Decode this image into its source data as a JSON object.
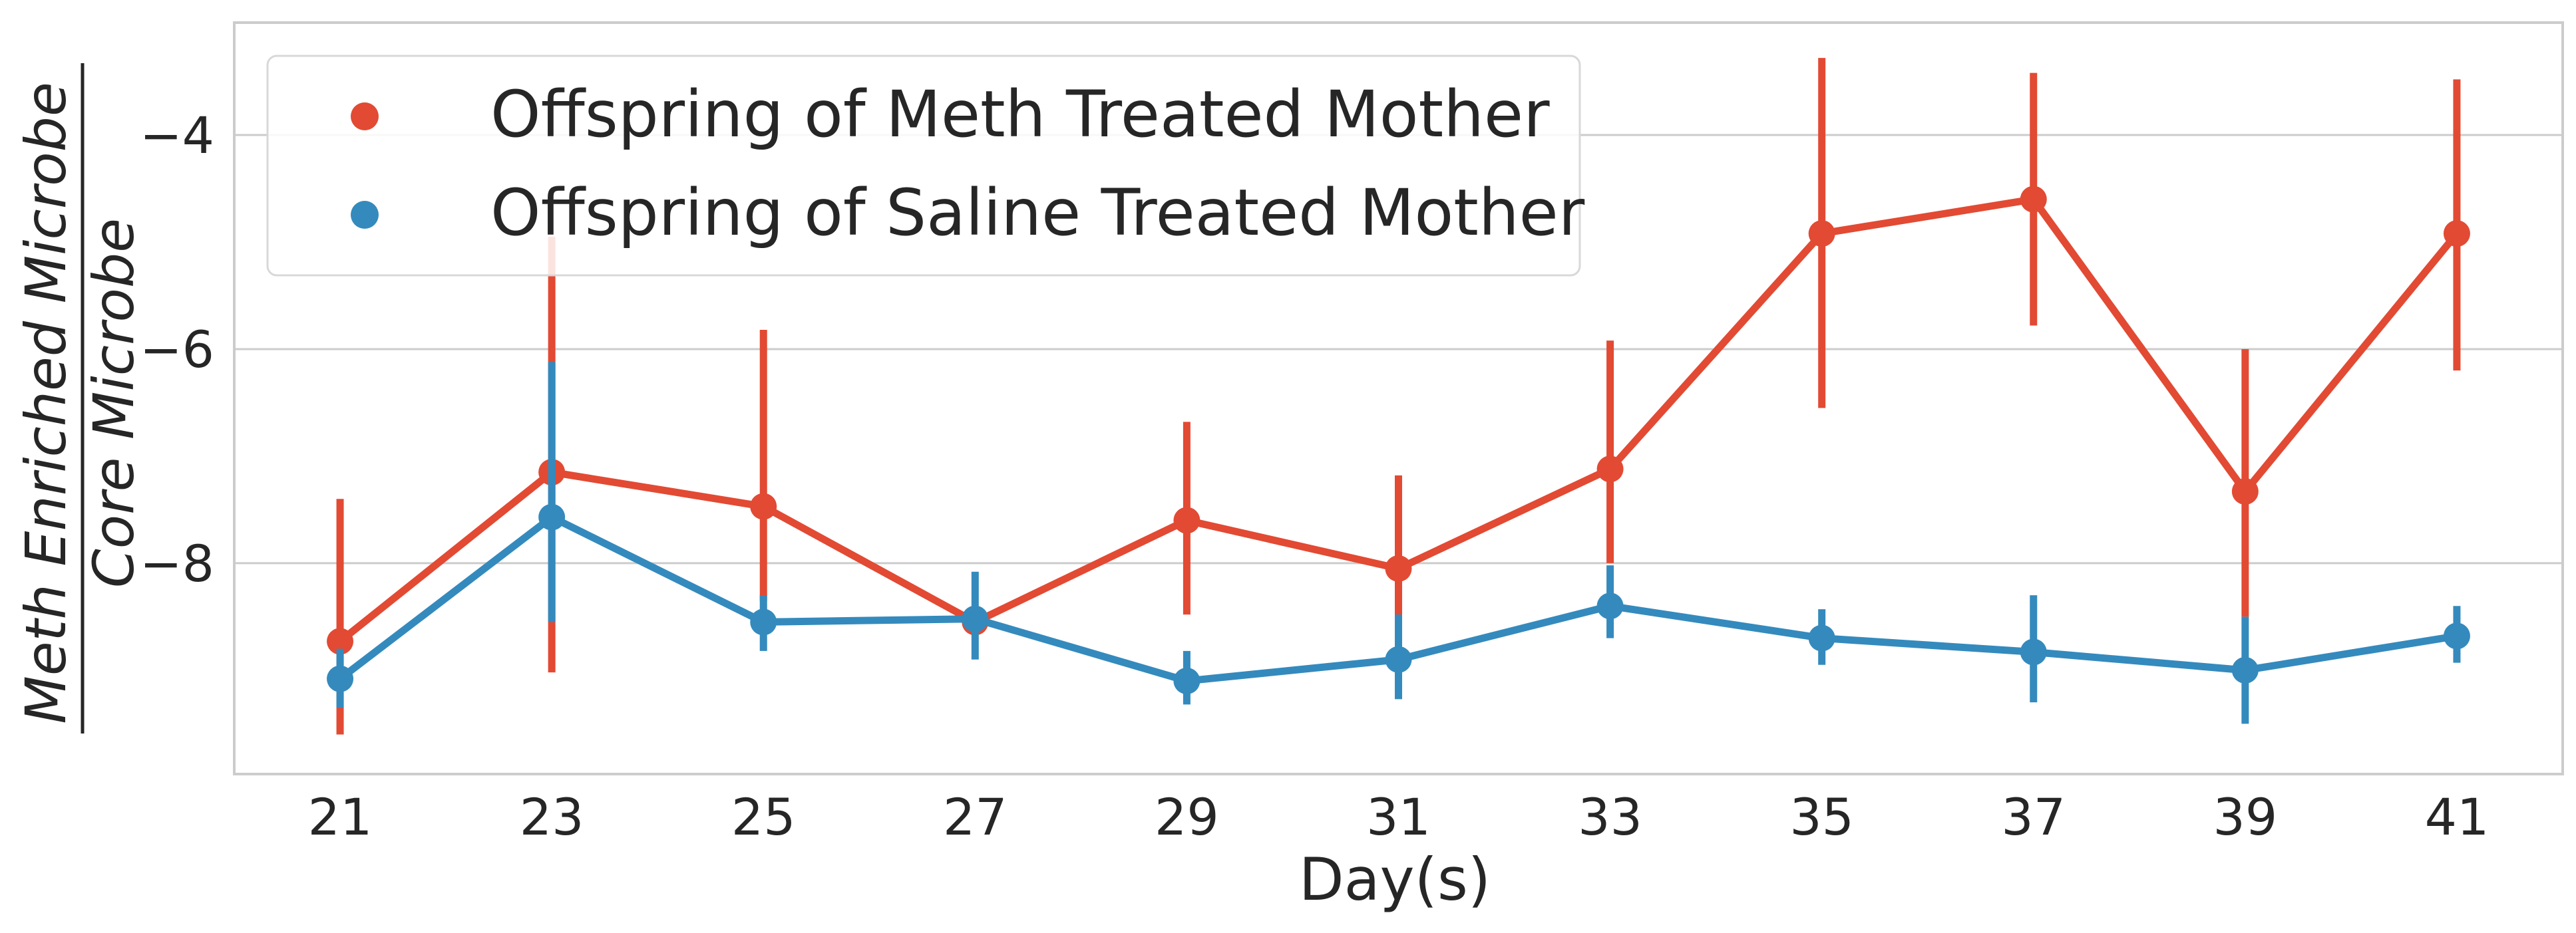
{
  "chart_data": {
    "type": "line",
    "title": "",
    "xlabel": "Day(s)",
    "ylabel_numerator": "Meth Enriched Microbe",
    "ylabel_denominator": "Core Microbe",
    "x": [
      21,
      23,
      25,
      27,
      29,
      31,
      33,
      35,
      37,
      39,
      41
    ],
    "xlim": [
      20,
      42
    ],
    "ylim": [
      -9.97,
      -2.95
    ],
    "yticks": [
      -4,
      -6,
      -8
    ],
    "ytick_labels": [
      "−4",
      "−6",
      "−8"
    ],
    "grid": "horizontal",
    "legend_position": "upper-left",
    "series": [
      {
        "name": "Offspring of Meth Treated Mother",
        "color": "#e24a33",
        "values": [
          -8.73,
          -7.15,
          -7.47,
          -8.55,
          -7.6,
          -8.05,
          -7.12,
          -4.92,
          -4.6,
          -7.33,
          -4.92
        ],
        "err_low": [
          -9.6,
          -9.02,
          -8.35,
          -8.6,
          -8.48,
          -8.5,
          -8.0,
          -6.55,
          -5.78,
          -8.5,
          -6.2
        ],
        "err_high": [
          -7.4,
          -4.95,
          -5.82,
          -8.5,
          -6.68,
          -7.18,
          -5.92,
          -3.28,
          -3.42,
          -6.0,
          -3.48
        ]
      },
      {
        "name": "Offspring of Saline Treated Mother",
        "color": "#348abd",
        "values": [
          -9.08,
          -7.57,
          -8.55,
          -8.52,
          -9.1,
          -8.9,
          -8.4,
          -8.7,
          -8.83,
          -9.0,
          -8.68
        ],
        "err_low": [
          -9.35,
          -8.55,
          -8.82,
          -8.9,
          -9.32,
          -9.27,
          -8.7,
          -8.95,
          -9.3,
          -9.5,
          -8.93
        ],
        "err_high": [
          -8.8,
          -6.12,
          -8.3,
          -8.08,
          -8.82,
          -8.48,
          -8.02,
          -8.43,
          -8.3,
          -8.5,
          -8.4
        ]
      }
    ]
  }
}
